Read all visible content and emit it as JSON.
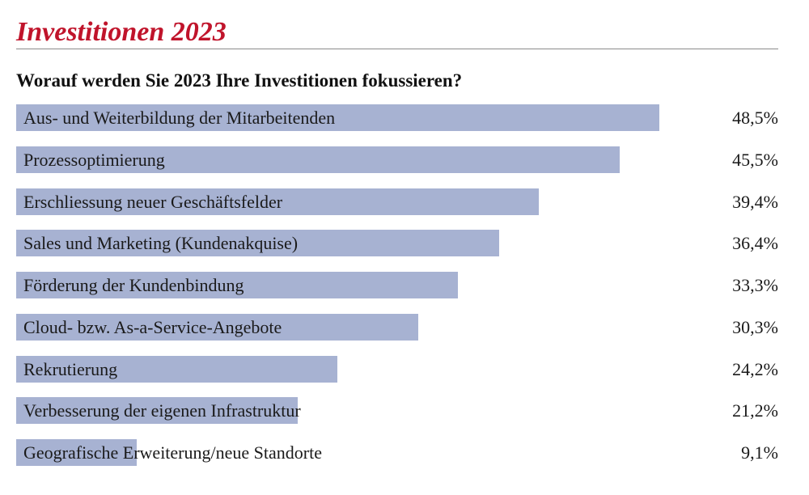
{
  "header": {
    "title": "Investitionen 2023",
    "subtitle": "Worauf werden Sie 2023 Ihre Investitionen fokussieren?"
  },
  "colors": {
    "title": "#c0142b",
    "bar": "#a7b2d2",
    "rule": "#8a8a8a"
  },
  "chart_data": {
    "type": "bar",
    "orientation": "horizontal",
    "title": "Worauf werden Sie 2023 Ihre Investitionen fokussieren?",
    "xlabel": "",
    "ylabel": "",
    "xlim": [
      0,
      57.5
    ],
    "grid": false,
    "legend": "none",
    "categories": [
      "Aus- und Weiterbildung der Mitarbeitenden",
      "Prozessoptimierung",
      "Erschliessung neuer Geschäftsfelder",
      "Sales und Marketing (Kundenakquise)",
      "Förderung der Kundenbindung",
      "Cloud- bzw. As-a-Service-Angebote",
      "Rekrutierung",
      "Verbesserung der eigenen Infrastruktur",
      "Geografische Erweiterung/neue Standorte"
    ],
    "values": [
      48.5,
      45.5,
      39.4,
      36.4,
      33.3,
      30.3,
      24.2,
      21.2,
      9.1
    ],
    "value_labels": [
      "48,5%",
      "45,5%",
      "39,4%",
      "36,4%",
      "33,3%",
      "30,3%",
      "24,2%",
      "21,2%",
      "9,1%"
    ]
  }
}
